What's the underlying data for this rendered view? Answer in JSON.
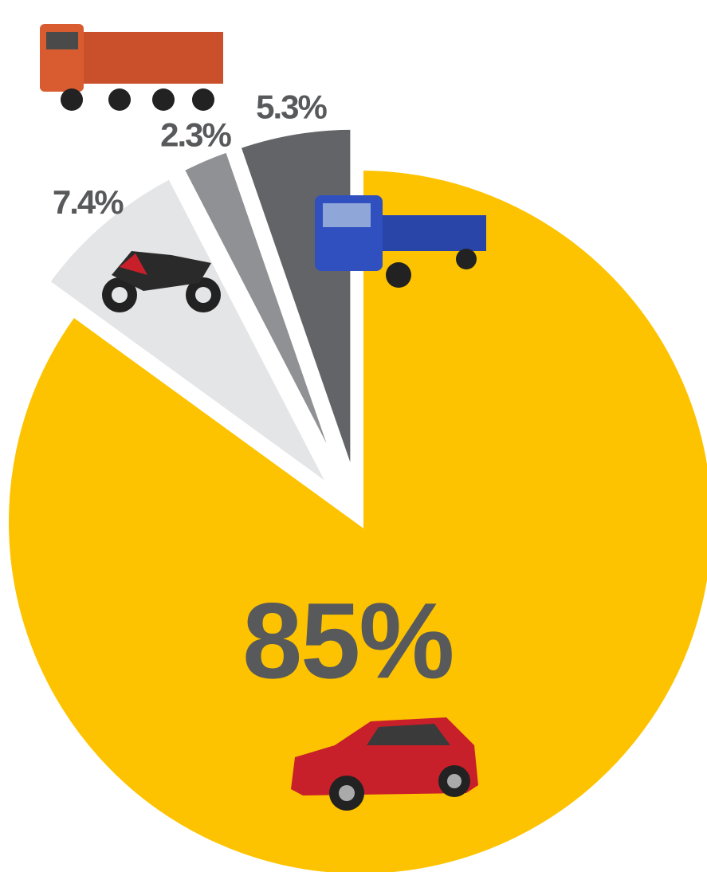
{
  "chart_data": {
    "type": "pie",
    "values": [
      85,
      7.4,
      2.3,
      5.3
    ],
    "value_labels": [
      "85%",
      "7.4%",
      "2.3%",
      "5.3%"
    ],
    "colors": [
      "#fdc300",
      "#e4e5e7",
      "#8f9194",
      "#636467"
    ]
  }
}
